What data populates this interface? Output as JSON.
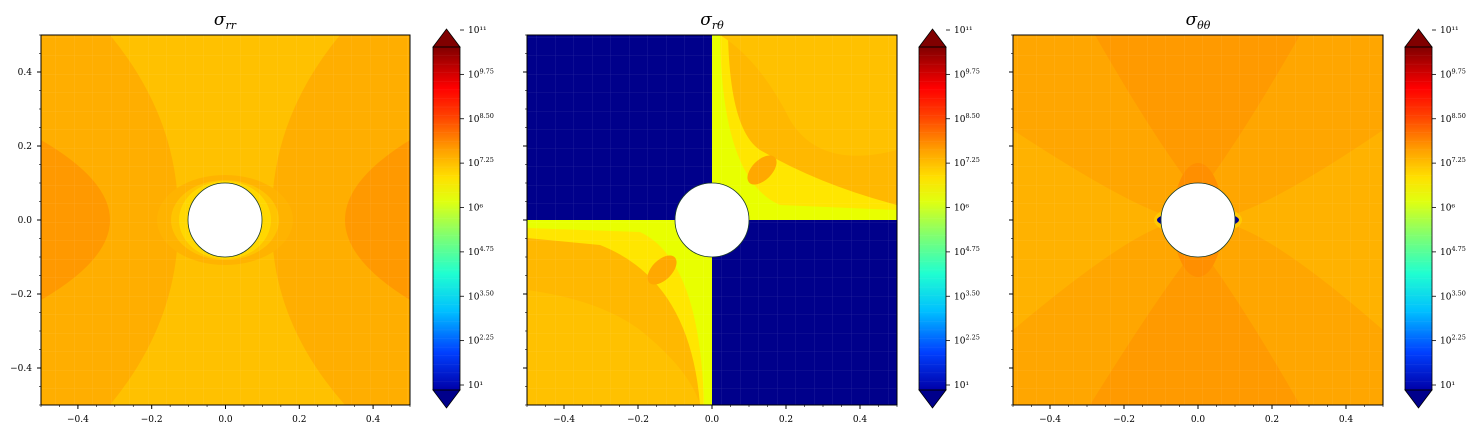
{
  "chart_data": [
    {
      "type": "heatmap",
      "title": "σ_rr",
      "title_main": "σ",
      "title_sub": "rr",
      "x_ticks": [
        "−0.4",
        "−0.2",
        "0.0",
        "0.2",
        "0.4"
      ],
      "x_tick_values": [
        -0.4,
        -0.2,
        0.0,
        0.2,
        0.4
      ],
      "y_ticks": [
        "0.4",
        "0.2",
        "0.0",
        "−0.2",
        "−0.4"
      ],
      "y_tick_values": [
        0.4,
        0.2,
        0.0,
        -0.2,
        -0.4
      ],
      "xlim": [
        -0.5,
        0.5
      ],
      "ylim": [
        -0.5,
        0.5
      ],
      "hole_radius": 0.1,
      "colorbar": {
        "scale": "log",
        "ticks": [
          "10¹",
          "10^2.25",
          "10^3.50",
          "10^4.75",
          "10⁶",
          "10^7.25",
          "10^8.50",
          "10^9.75",
          "10¹¹"
        ],
        "tick_exponents": [
          1,
          2.25,
          3.5,
          4.75,
          6,
          7.25,
          8.5,
          9.75,
          11
        ],
        "range_exponent": [
          1,
          11
        ],
        "extend": "both"
      }
    },
    {
      "type": "heatmap",
      "title": "σ_rθ",
      "title_main": "σ",
      "title_sub": "rθ",
      "x_ticks": [
        "−0.4",
        "−0.2",
        "0.0",
        "0.2",
        "0.4"
      ],
      "x_tick_values": [
        -0.4,
        -0.2,
        0.0,
        0.2,
        0.4
      ],
      "y_ticks": [],
      "xlim": [
        -0.5,
        0.5
      ],
      "ylim": [
        -0.5,
        0.5
      ],
      "hole_radius": 0.1,
      "colorbar": {
        "scale": "log",
        "ticks": [
          "10¹",
          "10^2.25",
          "10^3.50",
          "10^4.75",
          "10⁶",
          "10^7.25",
          "10^8.50",
          "10^9.75",
          "10¹¹"
        ],
        "tick_exponents": [
          1,
          2.25,
          3.5,
          4.75,
          6,
          7.25,
          8.5,
          9.75,
          11
        ],
        "range_exponent": [
          1,
          11
        ],
        "extend": "both"
      }
    },
    {
      "type": "heatmap",
      "title": "σ_θθ",
      "title_main": "σ",
      "title_sub": "θθ",
      "x_ticks": [
        "−0.4",
        "−0.2",
        "0.0",
        "0.2",
        "0.4"
      ],
      "x_tick_values": [
        -0.4,
        -0.2,
        0.0,
        0.2,
        0.4
      ],
      "y_ticks": [],
      "xlim": [
        -0.5,
        0.5
      ],
      "ylim": [
        -0.5,
        0.5
      ],
      "hole_radius": 0.1,
      "colorbar": {
        "scale": "log",
        "ticks": [
          "10¹",
          "10^2.25",
          "10^3.50",
          "10^4.75",
          "10⁶",
          "10^7.25",
          "10^8.50",
          "10^9.75",
          "10¹¹"
        ],
        "tick_exponents": [
          1,
          2.25,
          3.5,
          4.75,
          6,
          7.25,
          8.5,
          9.75,
          11
        ],
        "range_exponent": [
          1,
          11
        ],
        "extend": "both"
      }
    }
  ],
  "colors": {
    "base_orange": "#ffae00",
    "light_orange": "#ffc100",
    "dark_orange": "#ff9600",
    "navy": "#00008b",
    "yellow": "#e6ff00"
  }
}
